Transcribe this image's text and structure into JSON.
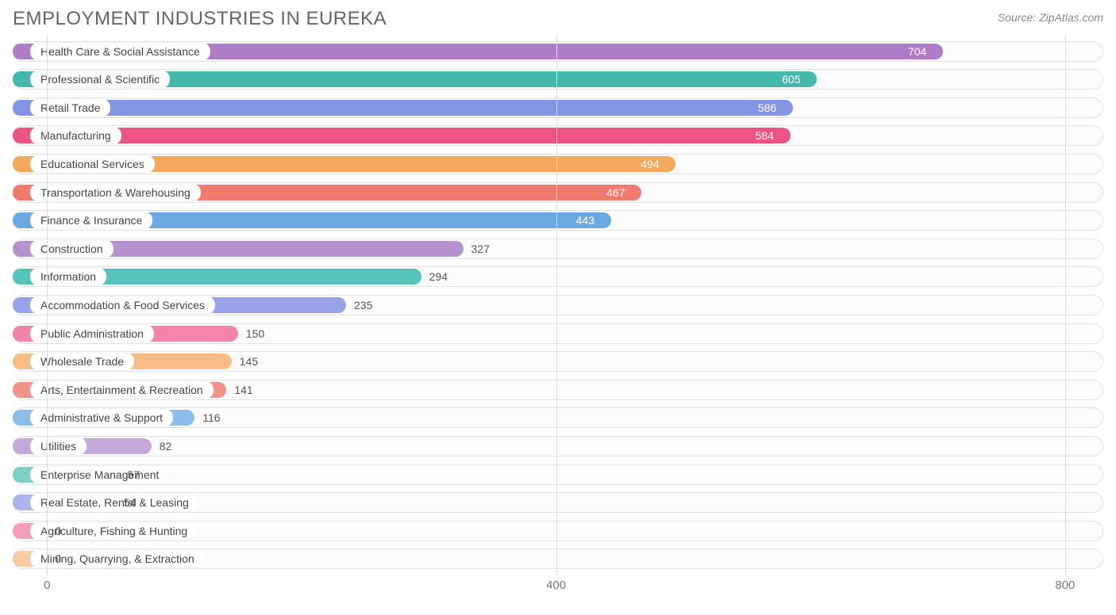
{
  "header": {
    "title": "EMPLOYMENT INDUSTRIES IN EUREKA",
    "source_label": "Source: ZipAtlas.com"
  },
  "chart": {
    "type": "bar-horizontal",
    "background_color": "#ffffff",
    "track_border_color": "#e2e2e2",
    "track_fill_color": "#fcfcfc",
    "grid_color": "#dddddd",
    "label_bg_color": "#ffffff",
    "label_text_color": "#444444",
    "axis_text_color": "#777777",
    "label_fontsize": 14,
    "title_fontsize": 24,
    "axis_fontsize": 15,
    "x_min": -27,
    "x_max": 830,
    "x_ticks": [
      0,
      400,
      800
    ],
    "value_inside_threshold": 400,
    "bar_origin": -27,
    "categories": [
      {
        "label": "Health Care & Social Assistance",
        "value": 704,
        "color": "#af7cc8"
      },
      {
        "label": "Professional & Scientific",
        "value": 605,
        "color": "#45b8ac"
      },
      {
        "label": "Retail Trade",
        "value": 586,
        "color": "#8494e4"
      },
      {
        "label": "Manufacturing",
        "value": 584,
        "color": "#ed5484"
      },
      {
        "label": "Educational Services",
        "value": 494,
        "color": "#f4a95d"
      },
      {
        "label": "Transportation & Warehousing",
        "value": 467,
        "color": "#ef7a6e"
      },
      {
        "label": "Finance & Insurance",
        "value": 443,
        "color": "#6aa9e4"
      },
      {
        "label": "Construction",
        "value": 327,
        "color": "#b693cf"
      },
      {
        "label": "Information",
        "value": 294,
        "color": "#56c4b8"
      },
      {
        "label": "Accommodation & Food Services",
        "value": 235,
        "color": "#97a2e7"
      },
      {
        "label": "Public Administration",
        "value": 150,
        "color": "#f284ab"
      },
      {
        "label": "Wholesale Trade",
        "value": 145,
        "color": "#f6bd86"
      },
      {
        "label": "Arts, Entertainment & Recreation",
        "value": 141,
        "color": "#f2938b"
      },
      {
        "label": "Administrative & Support",
        "value": 116,
        "color": "#8bbde9"
      },
      {
        "label": "Utilities",
        "value": 82,
        "color": "#c3a8d9"
      },
      {
        "label": "Enterprise Management",
        "value": 57,
        "color": "#7ecfc5"
      },
      {
        "label": "Real Estate, Rental & Leasing",
        "value": 54,
        "color": "#acb4ec"
      },
      {
        "label": "Agriculture, Fishing & Hunting",
        "value": 0,
        "color": "#f59ebc"
      },
      {
        "label": "Mining, Quarrying, & Extraction",
        "value": 0,
        "color": "#f8cda2"
      }
    ]
  }
}
